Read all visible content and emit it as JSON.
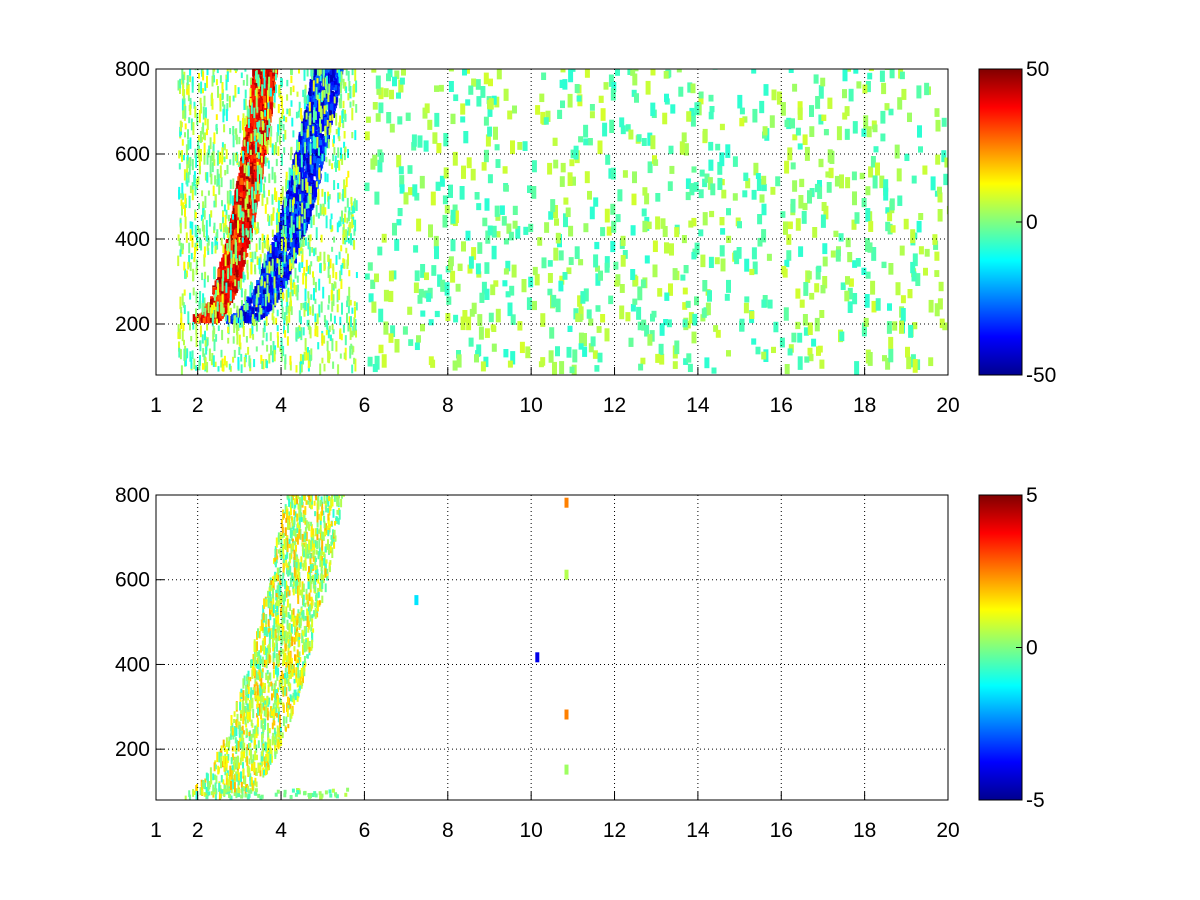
{
  "chart_data": [
    {
      "type": "heatmap",
      "title": "",
      "xlabel": "",
      "ylabel": "",
      "xlim": [
        1,
        20
      ],
      "ylim": [
        80,
        800
      ],
      "xticks": [
        1,
        2,
        4,
        6,
        8,
        10,
        12,
        14,
        16,
        18,
        20
      ],
      "yticks": [
        200,
        400,
        600,
        800
      ],
      "grid": true,
      "colormap": "jet",
      "clim": [
        -50,
        50
      ],
      "colorbar": {
        "ticks": [
          50,
          0,
          -50
        ],
        "tick_labels": [
          "50",
          "0",
          "-50"
        ],
        "placement": "right"
      },
      "features": [
        {
          "x": [
            2.0,
            3.8
          ],
          "y": [
            250,
            750
          ],
          "value": 45,
          "desc": "positive (red/orange) band"
        },
        {
          "x": [
            2.8,
            5.5
          ],
          "y": [
            180,
            720
          ],
          "value": -45,
          "desc": "negative (blue) band"
        },
        {
          "x": [
            1.0,
            20.0
          ],
          "y": [
            80,
            800
          ],
          "value": 5,
          "desc": "sparse small-amplitude speckle"
        }
      ]
    },
    {
      "type": "heatmap",
      "title": "",
      "xlabel": "",
      "ylabel": "",
      "xlim": [
        1,
        20
      ],
      "ylim": [
        80,
        800
      ],
      "xticks": [
        1,
        2,
        4,
        6,
        8,
        10,
        12,
        14,
        16,
        18,
        20
      ],
      "yticks": [
        200,
        400,
        600,
        800
      ],
      "grid": true,
      "colormap": "jet",
      "clim": [
        -5,
        5
      ],
      "colorbar": {
        "ticks": [
          5,
          0,
          -5
        ],
        "tick_labels": [
          "5",
          "0",
          "-5"
        ],
        "placement": "right"
      },
      "features": [
        {
          "x": [
            2.0,
            5.5
          ],
          "y": [
            80,
            800
          ],
          "value": 0.5,
          "desc": "curved band of small values"
        },
        {
          "x": [
            10.1,
            10.9
          ],
          "y": [
            100,
            790
          ],
          "value": 0,
          "desc": "isolated specks"
        }
      ]
    }
  ],
  "colors": {
    "jet_stops": [
      "#00008f",
      "#0000ff",
      "#00ffff",
      "#80ff80",
      "#ffff00",
      "#ff0000",
      "#800000"
    ]
  }
}
